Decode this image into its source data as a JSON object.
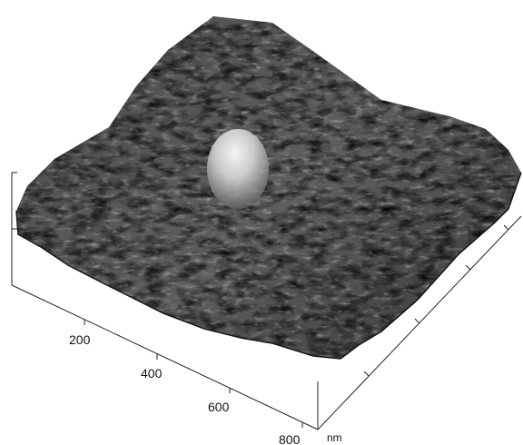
{
  "figure": {
    "type": "afm-3d-surface",
    "x_axis": {
      "tick_labels": [
        "200",
        "400",
        "600",
        "800"
      ],
      "unit": "nm"
    },
    "z_axis": {
      "tick_count": 2
    },
    "colors": {
      "background": "#ffffff",
      "surface_dark": "#1a1a1a",
      "surface_mid": "#5a5a5a",
      "surface_light": "#9c9c9c",
      "peak_highlight": "#f2f2f2",
      "axis": "#222222"
    }
  }
}
